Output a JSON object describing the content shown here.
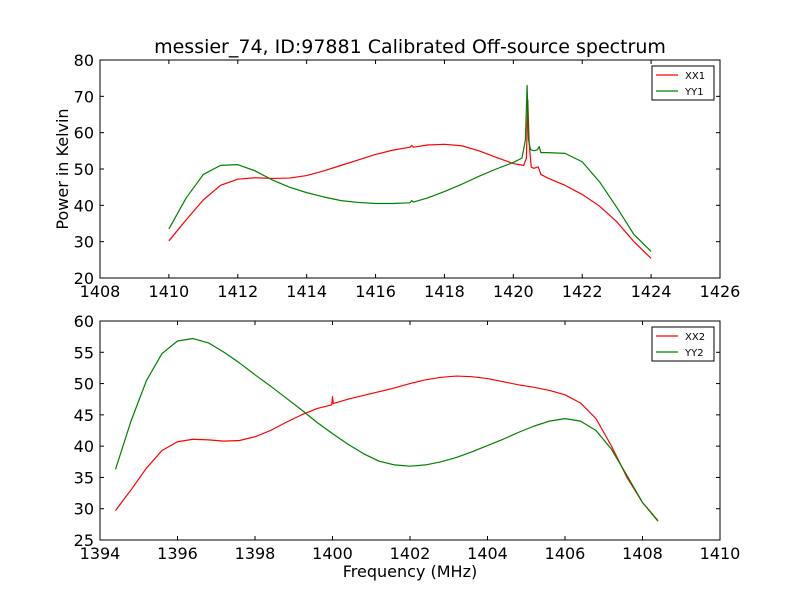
{
  "title": "messier_74, ID:97881 Calibrated Off-source spectrum",
  "colors": {
    "xx": "#ff0000",
    "yy": "#008000",
    "axes": "#000000",
    "background": "#ffffff"
  },
  "chart_data": [
    {
      "type": "line",
      "xlabel": "",
      "ylabel": "Power in Kelvin",
      "xlim": [
        1408,
        1426
      ],
      "ylim": [
        20,
        80
      ],
      "xticks": [
        1408,
        1410,
        1412,
        1414,
        1416,
        1418,
        1420,
        1422,
        1424,
        1426
      ],
      "yticks": [
        20,
        30,
        40,
        50,
        60,
        70,
        80
      ],
      "legend_position": "top-right",
      "series": [
        {
          "name": "XX1",
          "color": "#ff0000",
          "x": [
            1410.0,
            1410.5,
            1411.0,
            1411.5,
            1412.0,
            1412.5,
            1413.0,
            1413.5,
            1414.0,
            1414.5,
            1415.0,
            1415.5,
            1416.0,
            1416.5,
            1417.0,
            1417.05,
            1417.1,
            1417.5,
            1418.0,
            1418.5,
            1419.0,
            1419.5,
            1420.0,
            1420.3,
            1420.38,
            1420.42,
            1420.46,
            1420.52,
            1420.6,
            1420.72,
            1420.76,
            1420.8,
            1421.0,
            1421.5,
            1422.0,
            1422.5,
            1423.0,
            1423.5,
            1424.0
          ],
          "y": [
            30.2,
            36.0,
            41.5,
            45.5,
            47.2,
            47.6,
            47.4,
            47.5,
            48.2,
            49.5,
            51.0,
            52.5,
            54.0,
            55.2,
            56.0,
            56.5,
            56.0,
            56.6,
            56.8,
            56.4,
            55.0,
            53.2,
            51.5,
            51.0,
            53.0,
            69.0,
            57.0,
            50.5,
            50.2,
            50.6,
            49.6,
            48.5,
            47.5,
            45.5,
            43.0,
            39.8,
            35.5,
            30.0,
            25.4
          ]
        },
        {
          "name": "YY1",
          "color": "#008000",
          "x": [
            1410.0,
            1410.5,
            1411.0,
            1411.5,
            1412.0,
            1412.5,
            1413.0,
            1413.5,
            1414.0,
            1414.5,
            1415.0,
            1415.5,
            1416.0,
            1416.5,
            1417.0,
            1417.05,
            1417.1,
            1417.5,
            1418.0,
            1418.5,
            1419.0,
            1419.5,
            1420.0,
            1420.25,
            1420.35,
            1420.4,
            1420.44,
            1420.5,
            1420.6,
            1420.7,
            1420.75,
            1420.8,
            1421.0,
            1421.5,
            1422.0,
            1422.5,
            1423.0,
            1423.5,
            1424.0
          ],
          "y": [
            33.5,
            42.0,
            48.5,
            51.0,
            51.2,
            49.5,
            47.0,
            45.0,
            43.5,
            42.3,
            41.3,
            40.8,
            40.5,
            40.5,
            40.7,
            41.3,
            40.9,
            42.0,
            43.8,
            45.8,
            48.0,
            50.0,
            51.8,
            53.0,
            58.0,
            73.0,
            58.0,
            55.3,
            55.0,
            55.3,
            56.2,
            54.5,
            54.5,
            54.3,
            52.0,
            46.5,
            39.5,
            32.0,
            27.3
          ]
        }
      ]
    },
    {
      "type": "line",
      "xlabel": "Frequency (MHz)",
      "ylabel": "",
      "xlim": [
        1394,
        1410
      ],
      "ylim": [
        25,
        60
      ],
      "xticks": [
        1394,
        1396,
        1398,
        1400,
        1402,
        1404,
        1406,
        1408,
        1410
      ],
      "yticks": [
        25,
        30,
        35,
        40,
        45,
        50,
        55,
        60
      ],
      "legend_position": "top-right",
      "series": [
        {
          "name": "XX2",
          "color": "#ff0000",
          "x": [
            1394.4,
            1394.8,
            1395.2,
            1395.6,
            1396.0,
            1396.4,
            1396.8,
            1397.2,
            1397.6,
            1398.0,
            1398.4,
            1398.8,
            1399.2,
            1399.6,
            1399.98,
            1400.0,
            1400.02,
            1400.4,
            1400.8,
            1401.2,
            1401.6,
            1402.0,
            1402.4,
            1402.8,
            1403.2,
            1403.6,
            1404.0,
            1404.4,
            1404.8,
            1405.2,
            1405.6,
            1406.0,
            1406.4,
            1406.8,
            1407.2,
            1407.6,
            1408.0,
            1408.4
          ],
          "y": [
            29.7,
            33.0,
            36.5,
            39.3,
            40.7,
            41.1,
            41.0,
            40.8,
            40.9,
            41.5,
            42.5,
            43.8,
            45.0,
            46.0,
            46.6,
            47.9,
            46.8,
            47.5,
            48.1,
            48.7,
            49.3,
            50.0,
            50.6,
            51.0,
            51.2,
            51.1,
            50.8,
            50.3,
            49.8,
            49.4,
            48.9,
            48.2,
            46.9,
            44.4,
            40.0,
            35.0,
            31.0,
            28.0
          ]
        },
        {
          "name": "YY2",
          "color": "#008000",
          "x": [
            1394.4,
            1394.8,
            1395.2,
            1395.6,
            1396.0,
            1396.4,
            1396.8,
            1397.2,
            1397.6,
            1398.0,
            1398.4,
            1398.8,
            1399.2,
            1399.6,
            1400.0,
            1400.4,
            1400.8,
            1401.2,
            1401.6,
            1402.0,
            1402.4,
            1402.8,
            1403.2,
            1403.6,
            1404.0,
            1404.4,
            1404.8,
            1405.2,
            1405.6,
            1406.0,
            1406.4,
            1406.8,
            1407.2,
            1407.6,
            1408.0,
            1408.4
          ],
          "y": [
            36.3,
            44.0,
            50.5,
            54.8,
            56.8,
            57.2,
            56.5,
            55.0,
            53.3,
            51.4,
            49.6,
            47.7,
            45.8,
            43.8,
            42.0,
            40.3,
            38.8,
            37.6,
            37.0,
            36.8,
            37.0,
            37.5,
            38.2,
            39.1,
            40.1,
            41.1,
            42.2,
            43.2,
            44.0,
            44.4,
            44.0,
            42.5,
            39.5,
            35.3,
            31.0,
            28.1
          ]
        }
      ]
    }
  ]
}
